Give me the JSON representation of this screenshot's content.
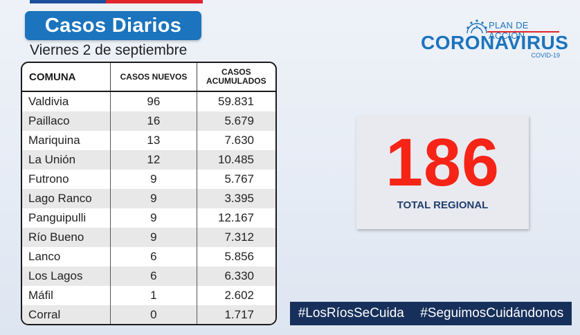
{
  "header": {
    "title": "Casos Diarios",
    "date": "Viernes 2 de septiembre"
  },
  "logo": {
    "plan": "PLAN DE ACCIÓN",
    "name": "CORONAVIRUS",
    "sub": "COVID-19"
  },
  "table": {
    "headers": {
      "comuna": "COMUNA",
      "nuevos": "CASOS NUEVOS",
      "acumulados_1": "CASOS",
      "acumulados_2": "ACUMULADOS"
    },
    "rows": [
      {
        "comuna": "Valdivia",
        "nuevos": "96",
        "acumulados": "59.831"
      },
      {
        "comuna": "Paillaco",
        "nuevos": "16",
        "acumulados": "5.679"
      },
      {
        "comuna": "Mariquina",
        "nuevos": "13",
        "acumulados": "7.630"
      },
      {
        "comuna": "La Unión",
        "nuevos": "12",
        "acumulados": "10.485"
      },
      {
        "comuna": "Futrono",
        "nuevos": "9",
        "acumulados": "5.767"
      },
      {
        "comuna": "Lago Ranco",
        "nuevos": "9",
        "acumulados": "3.395"
      },
      {
        "comuna": "Panguipulli",
        "nuevos": "9",
        "acumulados": "12.167"
      },
      {
        "comuna": "Río Bueno",
        "nuevos": "9",
        "acumulados": "7.312"
      },
      {
        "comuna": "Lanco",
        "nuevos": "6",
        "acumulados": "5.856"
      },
      {
        "comuna": "Los Lagos",
        "nuevos": "6",
        "acumulados": "6.330"
      },
      {
        "comuna": "Máfil",
        "nuevos": "1",
        "acumulados": "2.602"
      },
      {
        "comuna": "Corral",
        "nuevos": "0",
        "acumulados": "1.717"
      }
    ]
  },
  "total": {
    "value": "186",
    "label": "TOTAL REGIONAL"
  },
  "hashtags": {
    "first": "#LosRíosSeCuida",
    "second": "#SeguimosCuidándonos"
  },
  "colors": {
    "brand_blue": "#1b74bd",
    "accent_red": "#f52417",
    "navy": "#17305b"
  }
}
